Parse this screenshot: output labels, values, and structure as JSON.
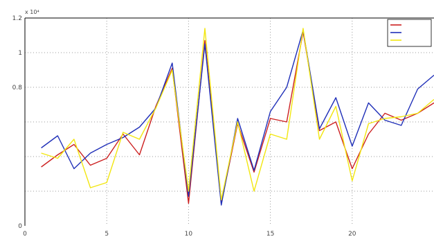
{
  "chart_data": {
    "type": "line",
    "title": "",
    "xlabel": "",
    "ylabel": "",
    "y_multiplier": "x 10⁴",
    "xlim": [
      0,
      25
    ],
    "ylim": [
      0,
      1.2
    ],
    "xticks": [
      0,
      5,
      10,
      15,
      20,
      25
    ],
    "xtick_labels": [
      "0",
      "5",
      "10",
      "15",
      "20",
      ""
    ],
    "yticks": [
      0,
      0.2,
      0.4,
      0.6,
      0.8,
      1,
      1.2
    ],
    "ytick_labels": [
      "0",
      "",
      "",
      "",
      "0.8",
      "1",
      "1.2"
    ],
    "grid": true,
    "legend": "top-right",
    "x": [
      1,
      2,
      3,
      4,
      5,
      6,
      7,
      8,
      9,
      10,
      11,
      12,
      13,
      14,
      15,
      16,
      17,
      18,
      19,
      20,
      21,
      22,
      23,
      24,
      25
    ],
    "series": [
      {
        "name": "",
        "color": "#cc1f1f",
        "values": [
          0.34,
          0.41,
          0.47,
          0.35,
          0.39,
          0.53,
          0.41,
          0.69,
          0.91,
          0.13,
          1.07,
          0.13,
          0.59,
          0.31,
          0.62,
          0.6,
          1.12,
          0.55,
          0.6,
          0.33,
          0.53,
          0.65,
          0.61,
          0.65,
          0.71
        ]
      },
      {
        "name": "",
        "color": "#1f2fb8",
        "values": [
          0.45,
          0.52,
          0.33,
          0.42,
          0.47,
          0.51,
          0.57,
          0.68,
          0.94,
          0.17,
          1.05,
          0.12,
          0.62,
          0.32,
          0.66,
          0.8,
          1.13,
          0.56,
          0.74,
          0.46,
          0.71,
          0.61,
          0.58,
          0.79,
          0.87
        ]
      },
      {
        "name": "",
        "color": "#f2e60f",
        "values": [
          0.42,
          0.39,
          0.5,
          0.22,
          0.25,
          0.54,
          0.5,
          0.68,
          0.9,
          0.2,
          1.14,
          0.15,
          0.6,
          0.2,
          0.53,
          0.5,
          1.14,
          0.5,
          0.69,
          0.26,
          0.59,
          0.62,
          0.63,
          0.65,
          0.73
        ]
      }
    ]
  }
}
